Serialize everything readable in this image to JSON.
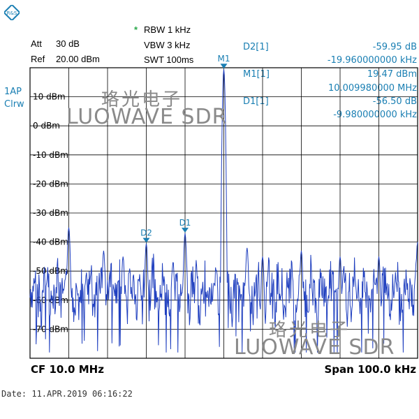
{
  "logo": {
    "icon": "rohde-schwarz-logo-icon",
    "color": "#1a7fb3"
  },
  "header": {
    "att_label": "Att",
    "att_value": "30 dB",
    "ref_label": "Ref",
    "ref_value": "20.00 dBm",
    "rbw_star": "*",
    "rbw": "RBW 1 kHz",
    "vbw": "VBW 3 kHz",
    "swt": "SWT 100ms"
  },
  "markers": [
    {
      "name": "D2[1]",
      "value1": "-59.95 dB",
      "value2": "-19.960000000 kHz"
    },
    {
      "name": "M1[1]",
      "value1": "19.47 dBm",
      "value2": "10.009980000 MHz"
    },
    {
      "name": "D1[1]",
      "value1": "-56.50 dB",
      "value2": "-9.980000000 kHz"
    }
  ],
  "trace_info": {
    "line1": "1AP",
    "line2": "Clrw"
  },
  "y_axis": {
    "labels": [
      "10 dBm",
      "0 dBm",
      "-10 dBm",
      "-20 dBm",
      "-30 dBm",
      "-40 dBm",
      "-50 dBm",
      "-60 dBm",
      "-70 dBm"
    ]
  },
  "footer": {
    "cf": "CF 10.0 MHz",
    "span": "Span 100.0 kHz"
  },
  "date_line": "Date: 11.APR.2019   06:16:22",
  "watermark": {
    "cn": "珞光电子",
    "en": "LUOWAVE SDR"
  },
  "colors": {
    "trace": "#1f3fbf",
    "marker": "#1a7fb3",
    "grid": "#000000"
  },
  "chart_data": {
    "type": "line",
    "x_unit": "kHz offset from CF",
    "xlim": [
      -50,
      50
    ],
    "ylim": [
      -80,
      20
    ],
    "grid": true,
    "main_peak": {
      "x": 0,
      "y": 19.47,
      "label": "M1"
    },
    "marker_points": [
      {
        "label": "D1",
        "x": -10,
        "y": -37
      },
      {
        "label": "D2",
        "x": -20,
        "y": -40.5
      }
    ],
    "side_peaks": [
      {
        "x": -40,
        "y": -35
      },
      {
        "x": -31,
        "y": -43
      },
      {
        "x": -26,
        "y": -45
      },
      {
        "x": 6,
        "y": -42
      },
      {
        "x": 10,
        "y": -45
      },
      {
        "x": 20,
        "y": -43
      },
      {
        "x": 30,
        "y": -45
      },
      {
        "x": 40,
        "y": -45
      },
      {
        "x": 50,
        "y": -40
      }
    ],
    "noise_floor": -50
  }
}
